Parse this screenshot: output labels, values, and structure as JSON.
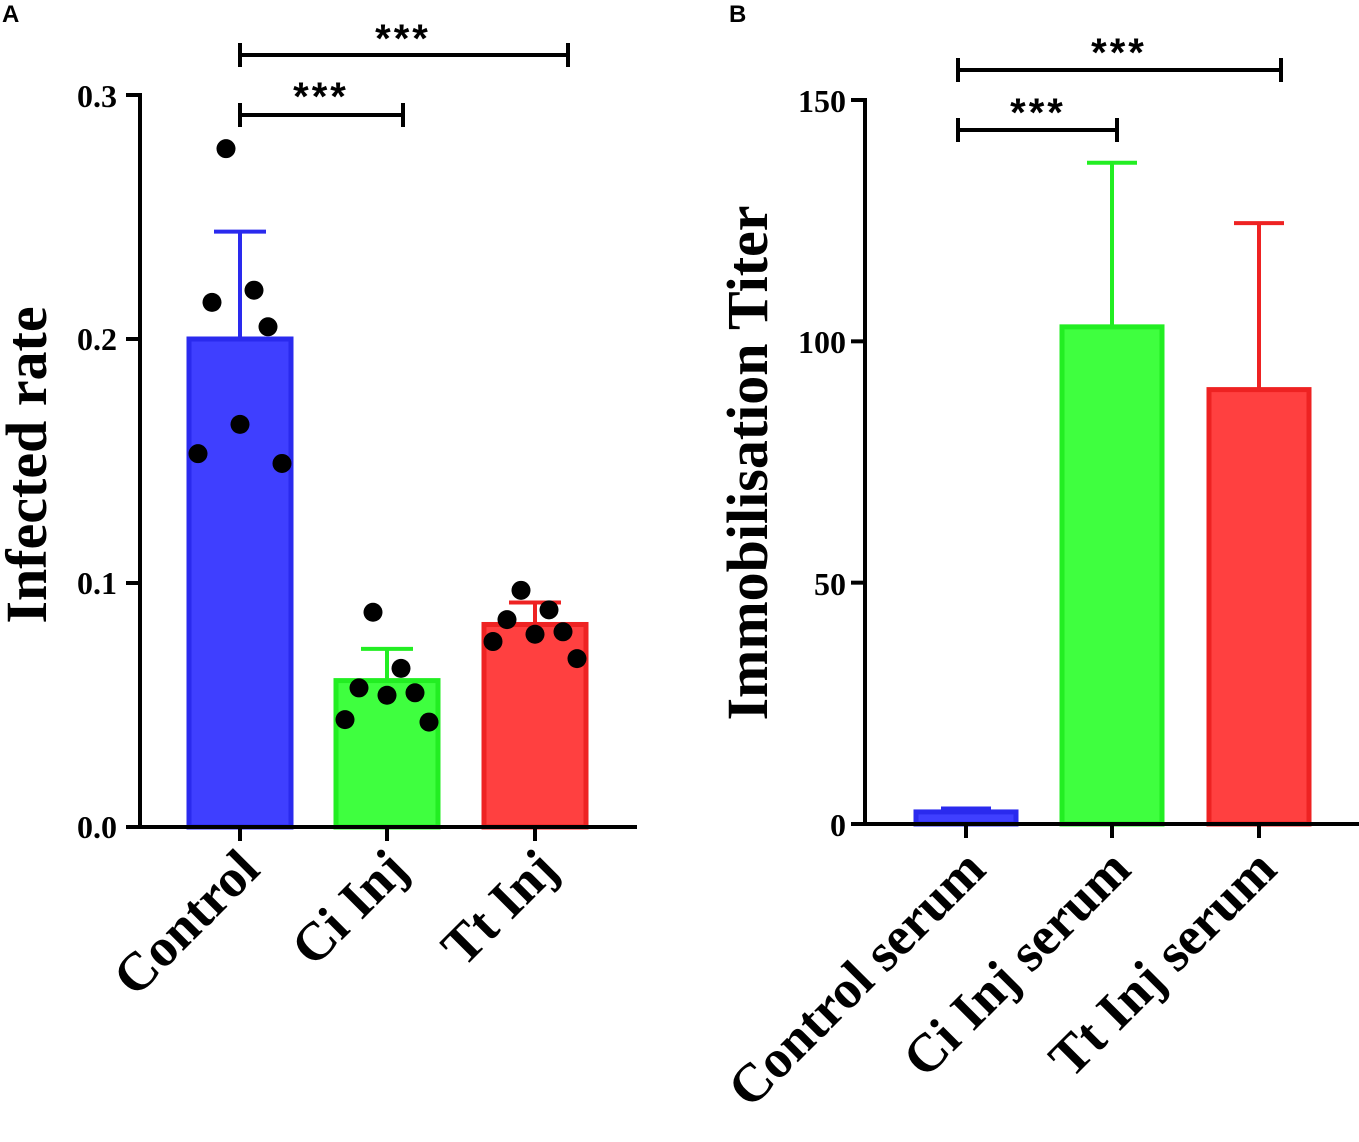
{
  "chart_data": [
    {
      "panel": "A",
      "type": "bar",
      "categories": [
        "Control",
        "Ci Inj",
        "Tt Inj"
      ],
      "values": [
        0.2,
        0.06,
        0.083
      ],
      "error_upper": [
        0.244,
        0.073,
        0.092
      ],
      "points": [
        [
          0.278,
          0.22,
          0.215,
          0.205,
          0.165,
          0.153,
          0.149
        ],
        [
          0.088,
          0.065,
          0.057,
          0.055,
          0.054,
          0.044,
          0.043
        ],
        [
          0.097,
          0.089,
          0.085,
          0.08,
          0.079,
          0.076,
          0.069
        ]
      ],
      "colors": [
        "#3f3fff",
        "#3fff3f",
        "#ff4040"
      ],
      "stroke_colors": [
        "#2a2aee",
        "#22ee22",
        "#ee2222"
      ],
      "ylabel": "Infected rate",
      "ylim": [
        0,
        0.3
      ],
      "yticks": [
        0.0,
        0.1,
        0.2,
        0.3
      ],
      "ytick_labels": [
        "0.0",
        "0.1",
        "0.2",
        "0.3"
      ],
      "significance": [
        {
          "from": 0,
          "to": 1,
          "label": "***"
        },
        {
          "from": 0,
          "to": 2,
          "label": "***"
        }
      ]
    },
    {
      "panel": "B",
      "type": "bar",
      "categories": [
        "Control serum",
        "Ci Inj serum",
        "Tt Inj serum"
      ],
      "values": [
        2.5,
        103,
        90
      ],
      "error_upper": [
        3.2,
        137,
        124.5
      ],
      "colors": [
        "#3f3fff",
        "#3fff3f",
        "#ff4040"
      ],
      "stroke_colors": [
        "#2a2aee",
        "#22ee22",
        "#ee2222"
      ],
      "ylabel": "Immobilisation Titer",
      "ylim": [
        0,
        150
      ],
      "yticks": [
        0,
        50,
        100,
        150
      ],
      "ytick_labels": [
        "0",
        "50",
        "100",
        "150"
      ],
      "significance": [
        {
          "from": 0,
          "to": 1,
          "label": "***"
        },
        {
          "from": 0,
          "to": 2,
          "label": "***"
        }
      ]
    }
  ]
}
